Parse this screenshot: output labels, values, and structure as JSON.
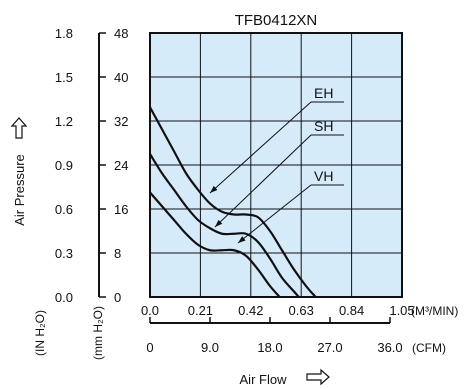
{
  "chart_data": {
    "type": "line",
    "title": "TFB0412XN",
    "xlabel": "Air Flow",
    "ylabel": "Air Pressure",
    "x_unit": "(M³/MIN)",
    "x2_unit": "(CFM)",
    "y_unit": "(IN H₂O)",
    "y2_unit": "(mm H₂O)",
    "xlim": [
      0,
      1.05
    ],
    "ylim": [
      0,
      48
    ],
    "x_ticks": [
      "0.0",
      "0.21",
      "0.42",
      "0.63",
      "0.84",
      "1.05"
    ],
    "x2_ticks": [
      "0",
      "9.0",
      "18.0",
      "27.0",
      "36.0"
    ],
    "y_ticks_mm": [
      "0",
      "8",
      "16",
      "24",
      "32",
      "40",
      "48"
    ],
    "y_ticks_in": [
      "0.0",
      "0.3",
      "0.6",
      "0.9",
      "1.2",
      "1.5",
      "1.8"
    ],
    "grid": true,
    "background_color": "#d6ebfa",
    "series": [
      {
        "name": "EH",
        "points": [
          [
            0,
            34.5
          ],
          [
            0.05,
            30.5
          ],
          [
            0.1,
            26.5
          ],
          [
            0.15,
            22.5
          ],
          [
            0.2,
            19.5
          ],
          [
            0.25,
            17
          ],
          [
            0.3,
            15.5
          ],
          [
            0.35,
            15
          ],
          [
            0.4,
            15
          ],
          [
            0.45,
            14.5
          ],
          [
            0.5,
            12
          ],
          [
            0.55,
            8.5
          ],
          [
            0.6,
            5
          ],
          [
            0.65,
            2
          ],
          [
            0.69,
            0
          ]
        ]
      },
      {
        "name": "SH",
        "points": [
          [
            0,
            26
          ],
          [
            0.05,
            22.5
          ],
          [
            0.1,
            19.5
          ],
          [
            0.15,
            16.5
          ],
          [
            0.2,
            14
          ],
          [
            0.25,
            12.5
          ],
          [
            0.3,
            11.5
          ],
          [
            0.35,
            11.5
          ],
          [
            0.4,
            11.5
          ],
          [
            0.45,
            10
          ],
          [
            0.5,
            7
          ],
          [
            0.55,
            3.5
          ],
          [
            0.6,
            1
          ],
          [
            0.62,
            0
          ]
        ]
      },
      {
        "name": "VH",
        "points": [
          [
            0,
            19
          ],
          [
            0.05,
            16.5
          ],
          [
            0.1,
            14
          ],
          [
            0.15,
            11.5
          ],
          [
            0.2,
            9.5
          ],
          [
            0.25,
            8.5
          ],
          [
            0.3,
            8.5
          ],
          [
            0.35,
            8.5
          ],
          [
            0.4,
            7.5
          ],
          [
            0.45,
            5
          ],
          [
            0.5,
            2
          ],
          [
            0.54,
            0
          ]
        ]
      }
    ]
  }
}
